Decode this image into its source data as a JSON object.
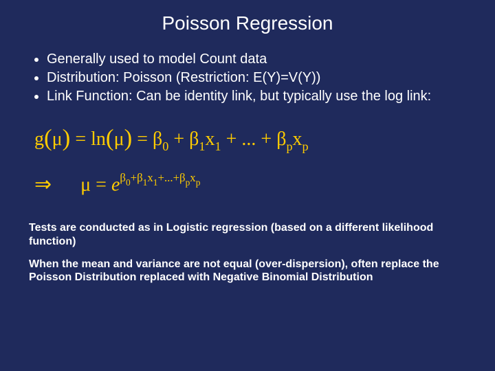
{
  "background_color": "#1f2a5c",
  "accent_color": "#ffcc00",
  "text_color": "#ffffff",
  "title": "Poisson Regression",
  "bullets": [
    "Generally used to model Count data",
    "Distribution: Poisson (Restriction: E(Y)=V(Y))",
    "Link Function: Can be identity link, but typically use the log link:"
  ],
  "equation_line1_parts": {
    "g": "g",
    "mu": "μ",
    "ln": "ln",
    "eq": "=",
    "beta": "β",
    "x": "x",
    "ellipsis": "...",
    "plus": "+",
    "sub0": "0",
    "sub1": "1",
    "subp": "p"
  },
  "equation_line2_parts": {
    "implies": "⇒",
    "mu": "μ",
    "eq": "=",
    "e": "e",
    "beta": "β",
    "x": "x",
    "ellipsis": "...",
    "plus": "+",
    "sub0": "0",
    "sub1": "1",
    "subp": "p"
  },
  "notes": [
    "Tests are conducted as in Logistic regression (based on a different likelihood function)",
    "When the mean and variance are not equal (over-dispersion), often replace the Poisson Distribution replaced with Negative Binomial Distribution"
  ]
}
